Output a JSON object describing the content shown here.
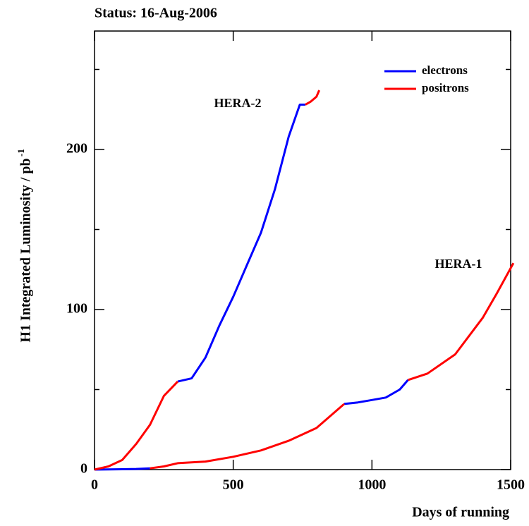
{
  "chart_data": {
    "type": "line",
    "title": "Status: 16-Aug-2006",
    "x_label": "Days of running",
    "y_label": "H1 Integrated Luminosity / pb",
    "y_label_superscript": "-1",
    "annotations": [
      "HERA-2",
      "HERA-1"
    ],
    "xlim": [
      0,
      1500
    ],
    "ylim": [
      0,
      274
    ],
    "xticks": [
      0,
      500,
      1000,
      1500
    ],
    "yticks": [
      0,
      100,
      200
    ],
    "y_minor_ticks": [
      50,
      150,
      250
    ],
    "legend": "upper right",
    "series": [
      {
        "name": "electrons",
        "color": "#0000ff",
        "x": [
          0,
          50,
          100,
          150,
          200,
          null,
          900,
          950,
          1000,
          1050,
          1100,
          1130,
          null,
          300,
          350,
          400,
          450,
          500,
          550,
          600,
          650,
          700,
          740,
          760
        ],
        "values": [
          0,
          0.1,
          0.2,
          0.4,
          0.8,
          null,
          41,
          42,
          43.5,
          45,
          50,
          56,
          null,
          55,
          57,
          70,
          90,
          108,
          128,
          148,
          175,
          208,
          228,
          228
        ]
      },
      {
        "name": "positrons",
        "color": "#ff0000",
        "x": [
          0,
          50,
          100,
          150,
          200,
          250,
          300,
          null,
          760,
          780,
          800,
          810,
          null,
          200,
          250,
          300,
          400,
          500,
          600,
          700,
          800,
          900,
          null,
          1130,
          1200,
          1300,
          1400,
          1450,
          1510
        ],
        "values": [
          0,
          2,
          6,
          16,
          28,
          46,
          55,
          null,
          228,
          230,
          233,
          237,
          null,
          0.8,
          2,
          4,
          5,
          8,
          12,
          18,
          26,
          41,
          null,
          56,
          60,
          72,
          95,
          110,
          129
        ]
      }
    ]
  }
}
